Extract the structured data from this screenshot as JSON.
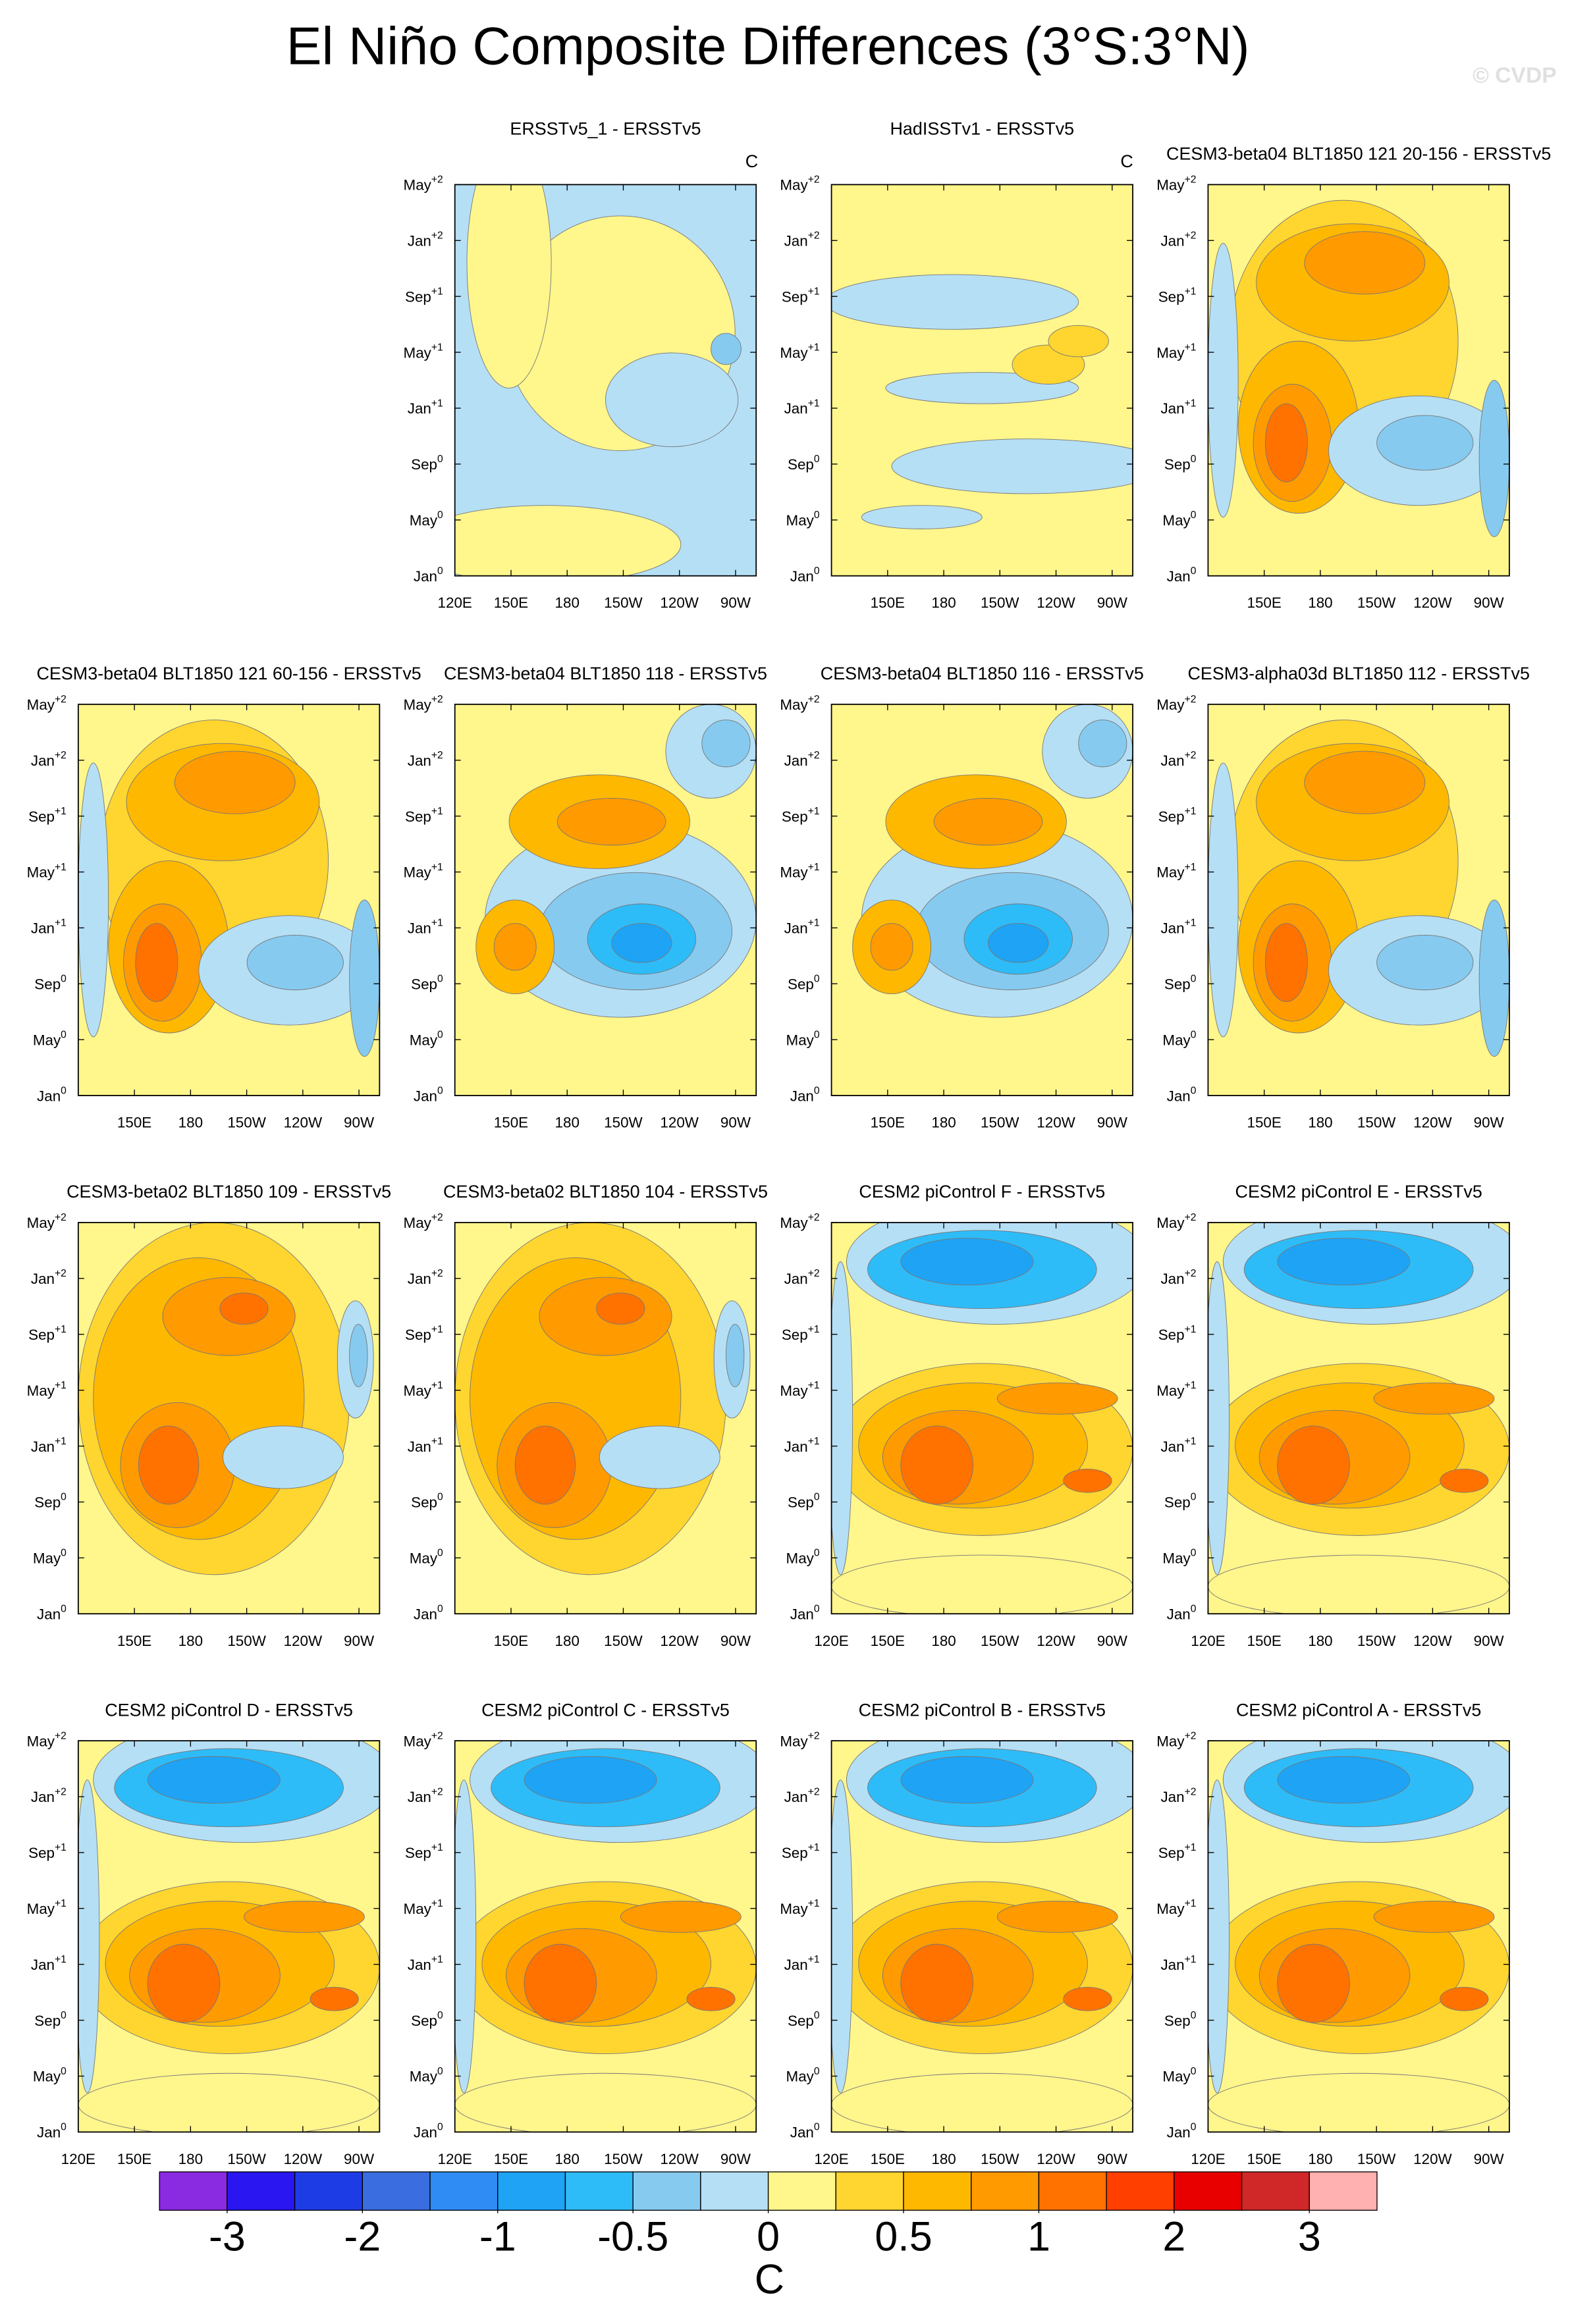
{
  "title": "El Niño Composite Differences (3°S:3°N)",
  "watermark": "© CVDP",
  "units": "C",
  "yaxis": {
    "ylim": [
      0,
      28
    ],
    "yticks": [
      {
        "value": 0,
        "label": "Jan",
        "sup": "0"
      },
      {
        "value": 4,
        "label": "May",
        "sup": "0"
      },
      {
        "value": 8,
        "label": "Sep",
        "sup": "0"
      },
      {
        "value": 12,
        "label": "Jan",
        "sup": "+1"
      },
      {
        "value": 16,
        "label": "May",
        "sup": "+1"
      },
      {
        "value": 20,
        "label": "Sep",
        "sup": "+1"
      },
      {
        "value": 24,
        "label": "Jan",
        "sup": "+2"
      },
      {
        "value": 28,
        "label": "May",
        "sup": "+2"
      }
    ]
  },
  "xlim": [
    120,
    281
  ],
  "chart_data": [
    {
      "type": "contour",
      "title": "ERSSTv5_1 - ERSSTv5",
      "xticks": [
        {
          "value": 120,
          "label": "120E"
        },
        {
          "value": 150,
          "label": "150E"
        },
        180,
        {
          "value": 210,
          "label": "150W"
        },
        {
          "value": 240,
          "label": "120W"
        },
        {
          "value": 270,
          "label": "90W"
        }
      ]
    },
    {
      "type": "contour",
      "title": "HadISSTv1 - ERSSTv5",
      "xticks": [
        {
          "value": 150,
          "label": "150E"
        },
        180,
        {
          "value": 210,
          "label": "150W"
        },
        {
          "value": 240,
          "label": "120W"
        },
        {
          "value": 270,
          "label": "90W"
        }
      ]
    },
    {
      "type": "contour",
      "title": "CESM3-beta04 BLT1850 121 20-156 - ERSSTv5",
      "xticks": [
        {
          "value": 150,
          "label": "150E"
        },
        180,
        {
          "value": 210,
          "label": "150W"
        },
        {
          "value": 240,
          "label": "120W"
        },
        {
          "value": 270,
          "label": "90W"
        }
      ]
    },
    {
      "type": "contour",
      "title": "CESM3-beta04 BLT1850 121 60-156 - ERSSTv5",
      "xticks": [
        {
          "value": 150,
          "label": "150E"
        },
        180,
        {
          "value": 210,
          "label": "150W"
        },
        {
          "value": 240,
          "label": "120W"
        },
        {
          "value": 270,
          "label": "90W"
        }
      ]
    },
    {
      "type": "contour",
      "title": "CESM3-beta04 BLT1850 118 - ERSSTv5",
      "xticks": [
        {
          "value": 150,
          "label": "150E"
        },
        180,
        {
          "value": 210,
          "label": "150W"
        },
        {
          "value": 240,
          "label": "120W"
        },
        {
          "value": 270,
          "label": "90W"
        }
      ]
    },
    {
      "type": "contour",
      "title": "CESM3-beta04 BLT1850 116 - ERSSTv5",
      "xticks": [
        {
          "value": 150,
          "label": "150E"
        },
        180,
        {
          "value": 210,
          "label": "150W"
        },
        {
          "value": 240,
          "label": "120W"
        },
        {
          "value": 270,
          "label": "90W"
        }
      ]
    },
    {
      "type": "contour",
      "title": "CESM3-alpha03d BLT1850 112 - ERSSTv5",
      "xticks": [
        {
          "value": 150,
          "label": "150E"
        },
        180,
        {
          "value": 210,
          "label": "150W"
        },
        {
          "value": 240,
          "label": "120W"
        },
        {
          "value": 270,
          "label": "90W"
        }
      ]
    },
    {
      "type": "contour",
      "title": "CESM3-beta02 BLT1850 109 - ERSSTv5",
      "xticks": [
        {
          "value": 150,
          "label": "150E"
        },
        180,
        {
          "value": 210,
          "label": "150W"
        },
        {
          "value": 240,
          "label": "120W"
        },
        {
          "value": 270,
          "label": "90W"
        }
      ]
    },
    {
      "type": "contour",
      "title": "CESM3-beta02 BLT1850 104 - ERSSTv5",
      "xticks": [
        {
          "value": 150,
          "label": "150E"
        },
        180,
        {
          "value": 210,
          "label": "150W"
        },
        {
          "value": 240,
          "label": "120W"
        },
        {
          "value": 270,
          "label": "90W"
        }
      ]
    },
    {
      "type": "contour",
      "title": "CESM2 piControl F - ERSSTv5",
      "xticks": [
        {
          "value": 120,
          "label": "120E"
        },
        {
          "value": 150,
          "label": "150E"
        },
        180,
        {
          "value": 210,
          "label": "150W"
        },
        {
          "value": 240,
          "label": "120W"
        },
        {
          "value": 270,
          "label": "90W"
        }
      ]
    },
    {
      "type": "contour",
      "title": "CESM2 piControl E - ERSSTv5",
      "xticks": [
        {
          "value": 120,
          "label": "120E"
        },
        {
          "value": 150,
          "label": "150E"
        },
        180,
        {
          "value": 210,
          "label": "150W"
        },
        {
          "value": 240,
          "label": "120W"
        },
        {
          "value": 270,
          "label": "90W"
        }
      ]
    },
    {
      "type": "contour",
      "title": "CESM2 piControl D - ERSSTv5",
      "xticks": [
        {
          "value": 120,
          "label": "120E"
        },
        {
          "value": 150,
          "label": "150E"
        },
        180,
        {
          "value": 210,
          "label": "150W"
        },
        {
          "value": 240,
          "label": "120W"
        },
        {
          "value": 270,
          "label": "90W"
        }
      ]
    },
    {
      "type": "contour",
      "title": "CESM2 piControl C - ERSSTv5",
      "xticks": [
        {
          "value": 120,
          "label": "120E"
        },
        {
          "value": 150,
          "label": "150E"
        },
        180,
        {
          "value": 210,
          "label": "150W"
        },
        {
          "value": 240,
          "label": "120W"
        },
        {
          "value": 270,
          "label": "90W"
        }
      ]
    },
    {
      "type": "contour",
      "title": "CESM2 piControl B - ERSSTv5",
      "xticks": [
        {
          "value": 120,
          "label": "120E"
        },
        {
          "value": 150,
          "label": "150E"
        },
        180,
        {
          "value": 210,
          "label": "150W"
        },
        {
          "value": 240,
          "label": "120W"
        },
        {
          "value": 270,
          "label": "90W"
        }
      ]
    },
    {
      "type": "contour",
      "title": "CESM2 piControl A - ERSSTv5",
      "xticks": [
        {
          "value": 120,
          "label": "120E"
        },
        {
          "value": 150,
          "label": "150E"
        },
        180,
        {
          "value": 210,
          "label": "150W"
        },
        {
          "value": 240,
          "label": "120W"
        },
        {
          "value": 270,
          "label": "90W"
        }
      ]
    }
  ],
  "colorbar": {
    "colors": [
      "#8a2be2",
      "#2a16f0",
      "#1e3ce6",
      "#3a6ee0",
      "#2f8cf5",
      "#1ea3f5",
      "#2ebcf8",
      "#86caf0",
      "#b5dff5",
      "#fff68c",
      "#ffd530",
      "#ffb800",
      "#ff9a00",
      "#ff7200",
      "#ff3f00",
      "#e80000",
      "#d02828",
      "#ffb0b0"
    ],
    "ticks": [
      -3,
      -2,
      -1,
      -0.5,
      0,
      0.5,
      1,
      2,
      3
    ]
  }
}
